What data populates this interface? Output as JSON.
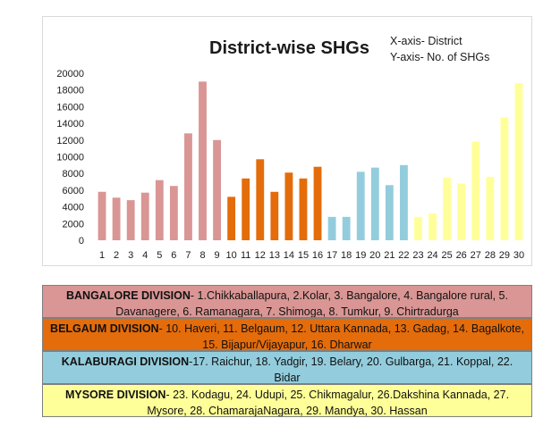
{
  "chart_data": {
    "type": "bar",
    "title": "District-wise SHGs",
    "xlabel": "X-axis- District",
    "ylabel": "Y-axis- No. of SHGs",
    "ylim": [
      0,
      20000
    ],
    "yticks": [
      0,
      2000,
      4000,
      6000,
      8000,
      10000,
      12000,
      14000,
      16000,
      18000,
      20000
    ],
    "categories": [
      "1",
      "2",
      "3",
      "4",
      "5",
      "6",
      "7",
      "8",
      "9",
      "10",
      "11",
      "12",
      "13",
      "14",
      "15",
      "16",
      "17",
      "18",
      "19",
      "20",
      "21",
      "22",
      "23",
      "24",
      "25",
      "26",
      "27",
      "28",
      "29",
      "30"
    ],
    "values": [
      5800,
      5100,
      4800,
      5700,
      7200,
      6500,
      12800,
      19000,
      12000,
      5200,
      7400,
      9700,
      5800,
      8100,
      7400,
      8800,
      2800,
      2800,
      8200,
      8700,
      6600,
      9000,
      2800,
      3200,
      7500,
      6800,
      11800,
      7600,
      14700,
      18800
    ],
    "bar_colors": [
      "#d99694",
      "#d99694",
      "#d99694",
      "#d99694",
      "#d99694",
      "#d99694",
      "#d99694",
      "#d99694",
      "#d99694",
      "#e46c0a",
      "#e46c0a",
      "#e46c0a",
      "#e46c0a",
      "#e46c0a",
      "#e46c0a",
      "#e46c0a",
      "#93cddd",
      "#93cddd",
      "#93cddd",
      "#93cddd",
      "#93cddd",
      "#93cddd",
      "#ffff99",
      "#ffff99",
      "#ffff99",
      "#ffff99",
      "#ffff99",
      "#ffff99",
      "#ffff99",
      "#ffff99"
    ],
    "grid": false
  },
  "annotations": {
    "x_axis": "X-axis- District",
    "y_axis": "Y-axis- No. of SHGs"
  },
  "divisions": [
    {
      "name": "BANGALORE DIVISION",
      "text": "- 1.Chikkaballapura, 2.Kolar, 3. Bangalore, 4. Bangalore rural, 5. Davanagere, 6. Ramanagara, 7. Shimoga, 8. Tumkur, 9. Chirtradurga",
      "color": "#d99694"
    },
    {
      "name": "BELGAUM DIVISION",
      "text": "- 10. Haveri, 11. Belgaum, 12. Uttara Kannada, 13. Gadag, 14. Bagalkote, 15. Bijapur/Vijayapur, 16. Dharwar",
      "color": "#e46c0a"
    },
    {
      "name": "KALABURAGI DIVISION",
      "text": "-17. Raichur, 18. Yadgir, 19. Belary, 20. Gulbarga, 21. Koppal, 22. Bidar",
      "color": "#93cddd"
    },
    {
      "name": "MYSORE DIVISION",
      "text": "- 23. Kodagu, 24. Udupi, 25. Chikmagalur, 26.Dakshina Kannada, 27. Mysore, 28. ChamarajaNagara, 29. Mandya, 30. Hassan",
      "color": "#ffff99"
    }
  ]
}
